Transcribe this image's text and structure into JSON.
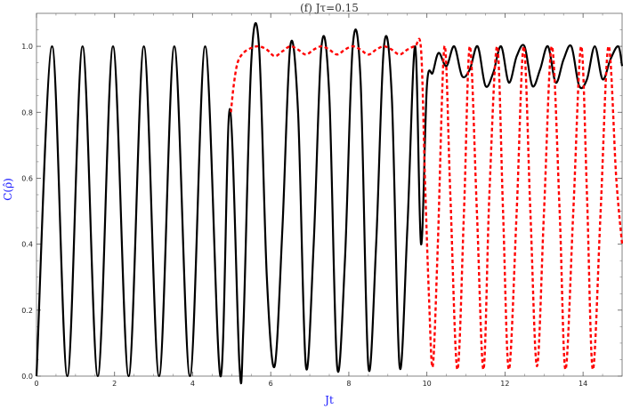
{
  "chart_data": {
    "type": "line",
    "title": "(f) Jτ=0.15",
    "xlabel": "Jt",
    "ylabel": "C(ρ̂)",
    "xlim": [
      0,
      15
    ],
    "ylim": [
      0,
      1.1
    ],
    "x_ticks": [
      0,
      2,
      4,
      6,
      8,
      10,
      12,
      14
    ],
    "x_tick_labels": [
      "0",
      "2",
      "4",
      "6",
      "8",
      "10",
      "12",
      "14"
    ],
    "y_ticks": [
      0.0,
      0.2,
      0.4,
      0.6,
      0.8,
      1.0
    ],
    "y_tick_labels": [
      "0.0",
      "0.2",
      "0.4",
      "0.6",
      "0.8",
      "1.0"
    ],
    "grid": false,
    "label_color": "#1a1aff",
    "series": [
      {
        "style": "solid",
        "color": "#000000",
        "x": [
          0,
          0.4,
          0.79,
          1.18,
          1.57,
          1.96,
          2.36,
          2.75,
          3.14,
          3.53,
          3.93,
          4.32,
          4.71,
          4.95,
          5.2,
          5.3,
          5.5,
          5.7,
          5.9,
          6.1,
          6.3,
          6.5,
          6.7,
          6.9,
          7.1,
          7.3,
          7.5,
          7.7,
          7.9,
          8.1,
          8.3,
          8.5,
          8.7,
          8.9,
          9.1,
          9.3,
          9.5,
          9.7,
          9.85,
          10.0,
          10.15,
          10.3,
          10.5,
          10.7,
          10.9,
          11.1,
          11.3,
          11.5,
          11.7,
          11.9,
          12.1,
          12.3,
          12.5,
          12.7,
          12.9,
          13.1,
          13.3,
          13.5,
          13.7,
          13.9,
          14.1,
          14.3,
          14.5,
          14.7,
          14.9,
          15.0
        ],
        "y": [
          0,
          1.0,
          0.0,
          1.0,
          0.0,
          1.0,
          0.0,
          1.0,
          0.0,
          1.0,
          0.0,
          1.0,
          0.0,
          0.81,
          0.03,
          0.15,
          0.95,
          1.0,
          0.3,
          0.03,
          0.45,
          1.0,
          0.8,
          0.03,
          0.4,
          1.0,
          0.85,
          0.03,
          0.35,
          1.0,
          0.9,
          0.03,
          0.4,
          1.0,
          0.85,
          0.03,
          0.45,
          1.0,
          0.4,
          0.88,
          0.92,
          0.98,
          0.94,
          1.0,
          0.91,
          0.93,
          1.0,
          0.88,
          0.92,
          1.0,
          0.89,
          0.97,
          1.0,
          0.88,
          0.93,
          1.0,
          0.89,
          0.96,
          1.0,
          0.88,
          0.9,
          1.0,
          0.9,
          0.96,
          1.0,
          0.94
        ]
      },
      {
        "style": "dashed",
        "color": "#ff0000",
        "x": [
          4.98,
          5.05,
          5.15,
          5.3,
          5.5,
          5.7,
          5.9,
          6.1,
          6.3,
          6.5,
          6.7,
          6.9,
          7.1,
          7.3,
          7.5,
          7.7,
          7.9,
          8.1,
          8.3,
          8.5,
          8.7,
          8.9,
          9.1,
          9.3,
          9.5,
          9.7,
          9.85,
          9.95,
          10.05,
          10.15,
          10.28,
          10.45,
          10.6,
          10.78,
          10.95,
          11.1,
          11.28,
          11.45,
          11.6,
          11.8,
          11.95,
          12.1,
          12.3,
          12.48,
          12.65,
          12.82,
          13.0,
          13.2,
          13.4,
          13.55,
          13.75,
          13.95,
          14.1,
          14.25,
          14.45,
          14.65,
          14.85,
          15.0
        ],
        "y": [
          0.8,
          0.88,
          0.95,
          0.98,
          0.995,
          1.0,
          0.99,
          0.97,
          0.985,
          1.0,
          0.99,
          0.975,
          0.99,
          1.0,
          0.99,
          0.975,
          0.99,
          1.0,
          0.99,
          0.975,
          0.99,
          1.0,
          0.99,
          0.975,
          0.99,
          1.0,
          0.99,
          0.6,
          0.25,
          0.03,
          0.4,
          1.0,
          0.55,
          0.02,
          0.5,
          1.0,
          0.5,
          0.02,
          0.55,
          1.0,
          0.5,
          0.02,
          0.5,
          1.0,
          0.5,
          0.03,
          0.5,
          1.0,
          0.5,
          0.02,
          0.5,
          1.0,
          0.55,
          0.02,
          0.5,
          1.0,
          0.6,
          0.4
        ]
      }
    ]
  }
}
